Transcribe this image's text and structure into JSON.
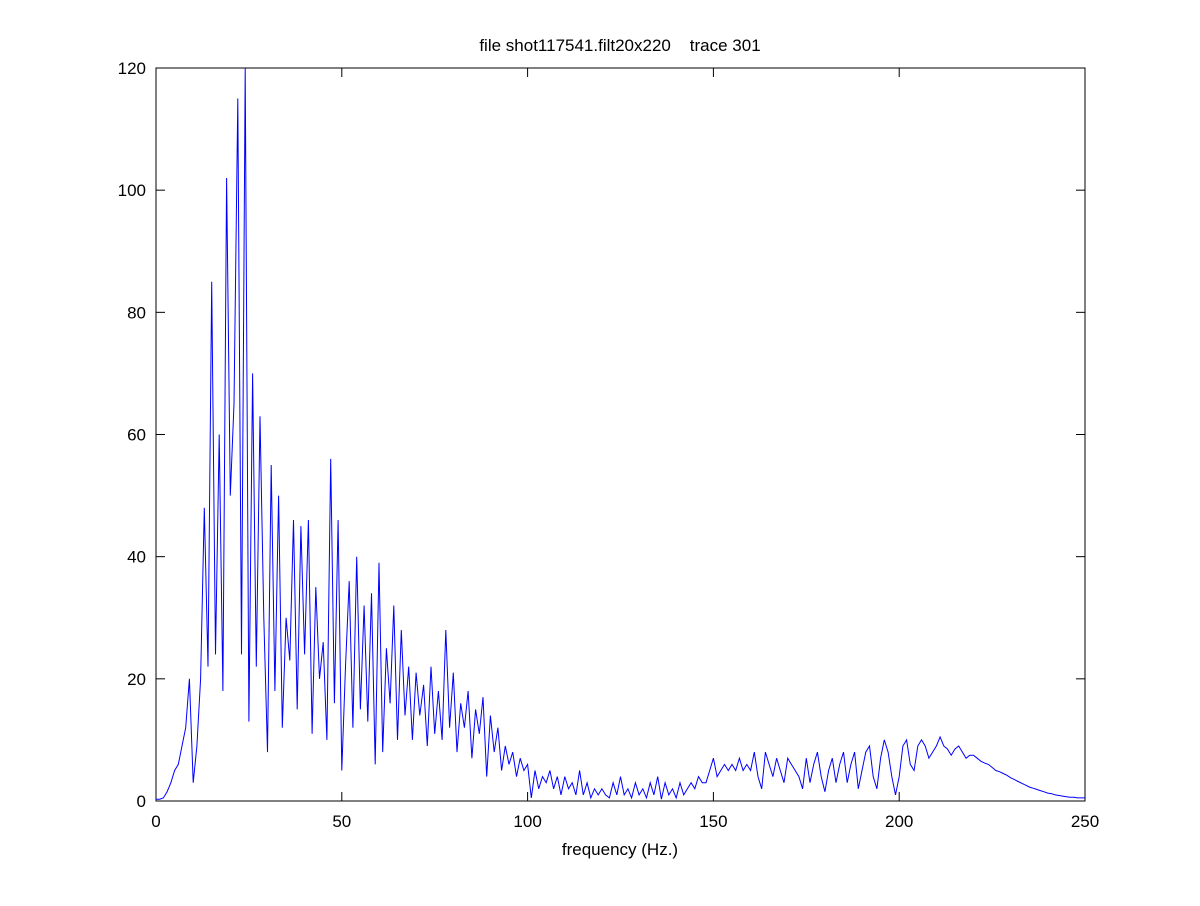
{
  "chart_data": {
    "type": "line",
    "title": "file shot117541.filt20x220    trace 301",
    "xlabel": "frequency (Hz.)",
    "ylabel": "",
    "xlim": [
      0,
      250
    ],
    "ylim": [
      0,
      120
    ],
    "xticks": [
      0,
      50,
      100,
      150,
      200,
      250
    ],
    "yticks": [
      0,
      20,
      40,
      60,
      80,
      100,
      120
    ],
    "grid": false,
    "series": [
      {
        "name": "trace 301",
        "color": "#0000ff",
        "x_start": 0,
        "x_step": 1,
        "values": [
          0.3,
          0.3,
          0.5,
          1.5,
          3,
          5,
          6,
          9,
          12,
          20,
          3,
          9,
          20,
          48,
          22,
          85,
          24,
          60,
          18,
          102,
          50,
          65,
          115,
          24,
          120,
          13,
          70,
          22,
          63,
          30,
          8,
          55,
          18,
          50,
          12,
          30,
          23,
          46,
          15,
          45,
          24,
          46,
          11,
          35,
          20,
          26,
          10,
          56,
          16,
          46,
          5,
          22,
          36,
          12,
          40,
          15,
          32,
          13,
          34,
          6,
          39,
          8,
          25,
          16,
          32,
          10,
          28,
          14,
          22,
          10,
          21,
          14,
          19,
          9,
          22,
          11,
          18,
          10,
          28,
          12,
          21,
          8,
          16,
          12,
          18,
          7,
          15,
          11,
          17,
          4,
          14,
          8,
          12,
          5,
          9,
          6,
          8,
          4,
          7,
          5,
          6,
          0.5,
          5,
          2,
          4,
          3,
          5,
          2,
          4,
          1,
          4,
          2,
          3,
          1,
          5,
          1,
          3,
          0.5,
          2,
          1,
          2,
          1,
          0.5,
          3,
          1,
          4,
          1,
          2,
          0.5,
          3,
          1,
          2,
          0.5,
          3,
          1,
          4,
          0.3,
          3,
          1,
          2,
          0.5,
          3,
          1,
          2,
          3,
          2,
          4,
          3,
          3,
          5,
          7,
          4,
          5,
          6,
          5,
          6,
          5,
          7,
          5,
          6,
          5,
          8,
          4,
          2,
          8,
          6,
          4,
          7,
          5,
          3,
          7,
          6,
          5,
          4,
          2,
          7,
          3,
          6,
          8,
          4,
          1.5,
          5,
          7,
          3,
          6,
          8,
          3,
          6,
          8,
          2,
          5,
          8,
          9,
          4,
          2,
          7,
          10,
          8,
          4,
          1,
          4,
          9,
          10,
          6,
          5,
          9,
          10,
          9,
          7,
          8,
          9,
          10.5,
          9,
          8.5,
          7.5,
          8.5,
          9,
          8,
          7,
          7.5,
          7.5,
          7,
          6.5,
          6.2,
          6,
          5.5,
          5,
          4.8,
          4.5,
          4.2,
          3.8,
          3.5,
          3.2,
          2.9,
          2.6,
          2.3,
          2.1,
          1.9,
          1.7,
          1.5,
          1.3,
          1.2,
          1.0,
          0.9,
          0.8,
          0.7,
          0.6,
          0.6,
          0.5,
          0.5,
          0.5
        ]
      }
    ]
  }
}
